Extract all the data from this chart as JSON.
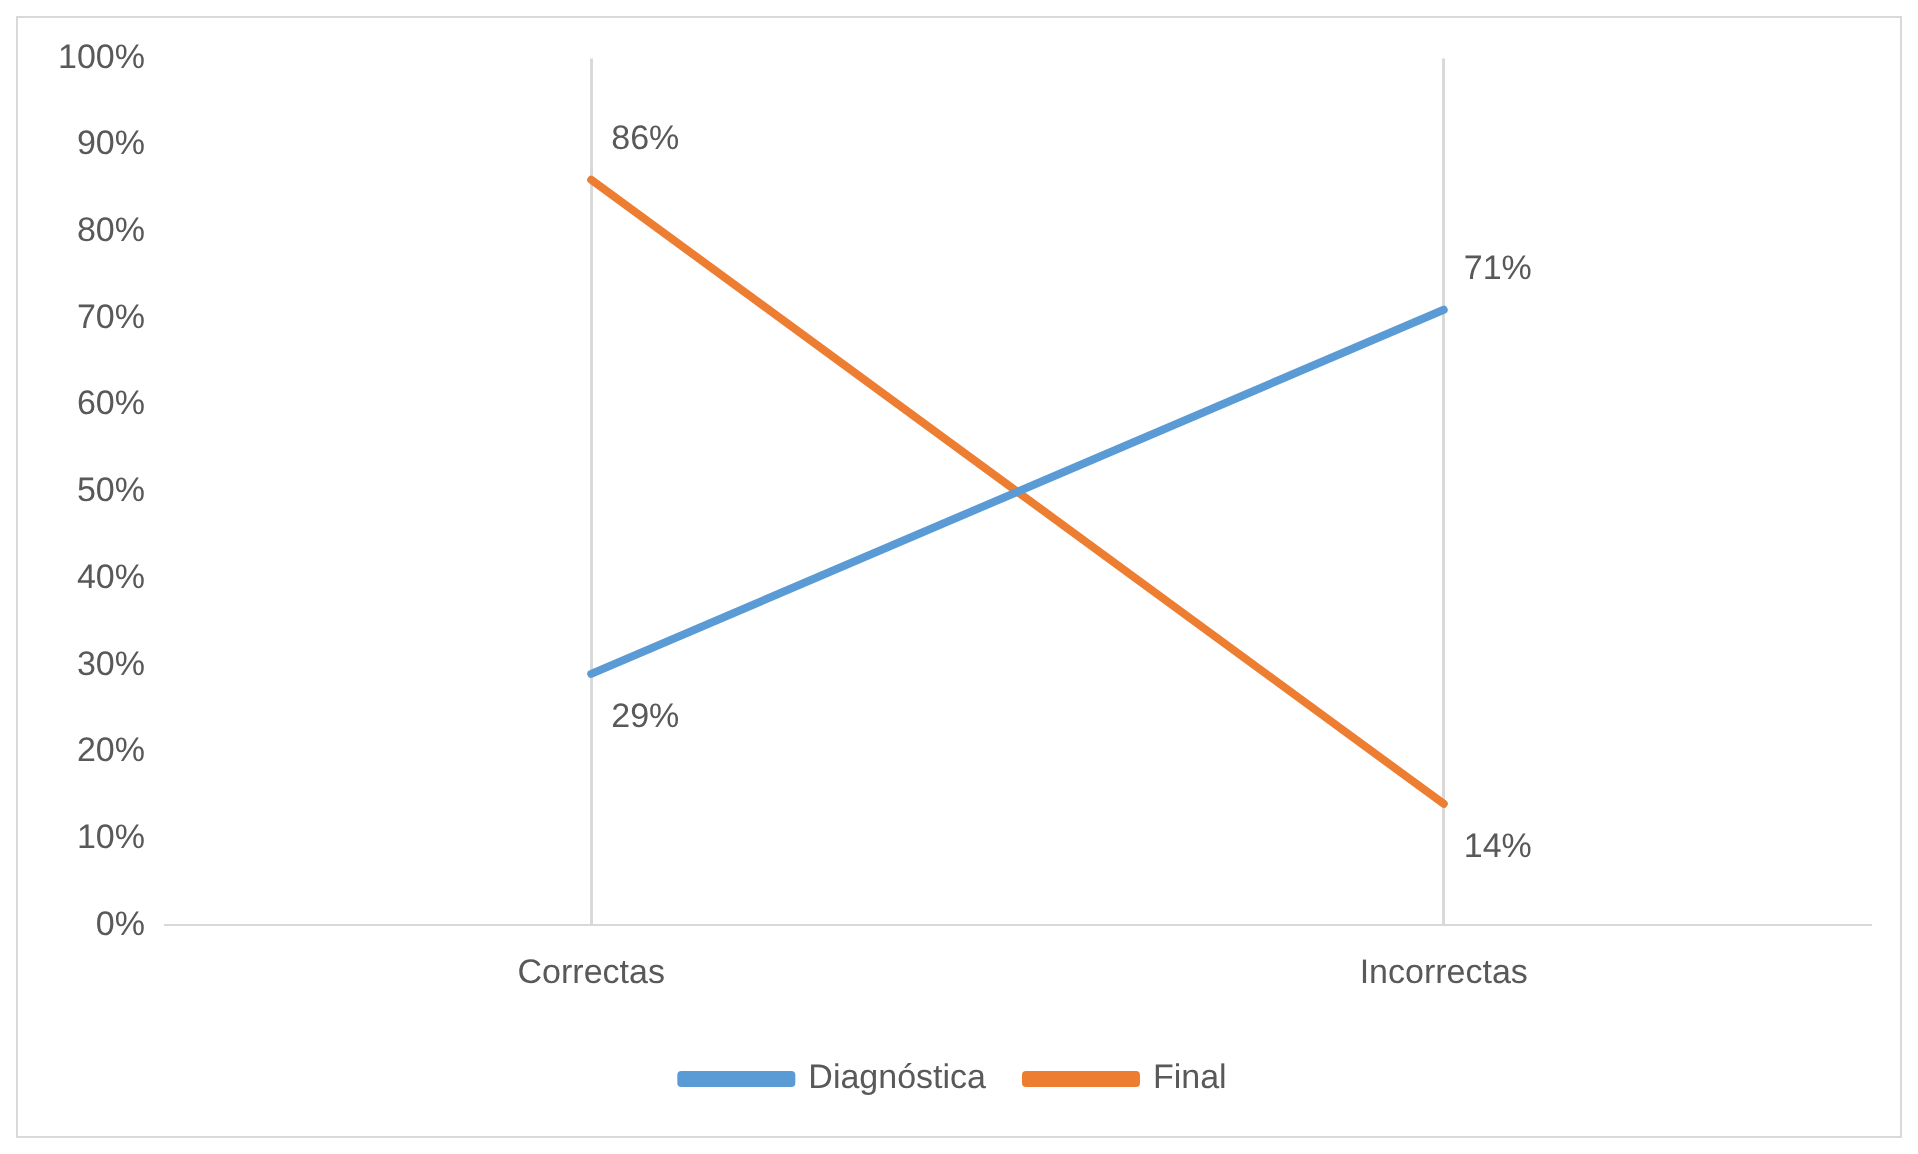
{
  "chart_data": {
    "type": "line",
    "categories": [
      "Correctas",
      "Incorrectas"
    ],
    "series": [
      {
        "name": "Diagnóstica",
        "color": "#5b9bd5",
        "values": [
          29,
          71
        ],
        "value_labels": [
          "29%",
          "71%"
        ]
      },
      {
        "name": "Final",
        "color": "#ed7d31",
        "values": [
          86,
          14
        ],
        "value_labels": [
          "86%",
          "14%"
        ]
      }
    ],
    "ylim": [
      0,
      100
    ],
    "yticks": [
      {
        "value": 0,
        "label": "0%"
      },
      {
        "value": 10,
        "label": "10%"
      },
      {
        "value": 20,
        "label": "20%"
      },
      {
        "value": 30,
        "label": "30%"
      },
      {
        "value": 40,
        "label": "40%"
      },
      {
        "value": 50,
        "label": "50%"
      },
      {
        "value": 60,
        "label": "60%"
      },
      {
        "value": 70,
        "label": "70%"
      },
      {
        "value": 80,
        "label": "80%"
      },
      {
        "value": 90,
        "label": "90%"
      },
      {
        "value": 100,
        "label": "100%"
      }
    ],
    "grid": "x",
    "legend": "bottom",
    "marker": "none",
    "line_style": "solid"
  }
}
